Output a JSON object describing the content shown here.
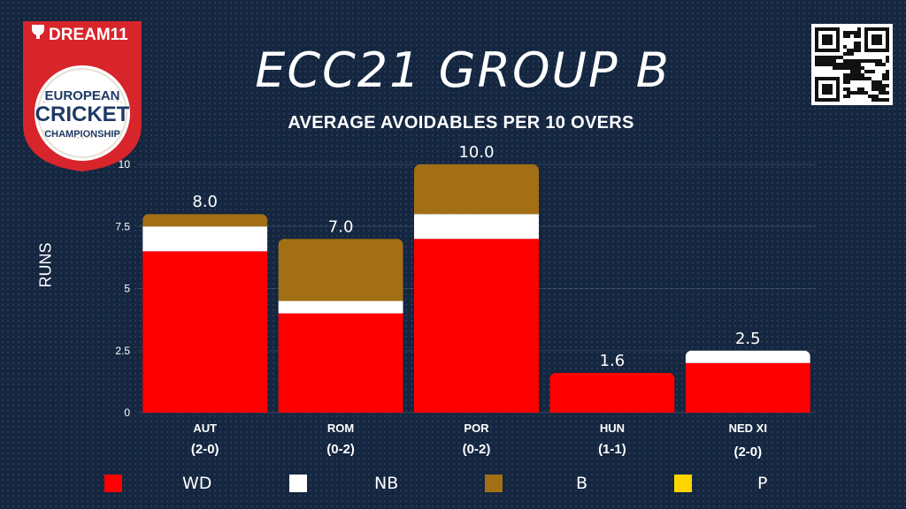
{
  "brand": {
    "sponsor": "DREAM11",
    "logo_line1": "EUROPEAN",
    "logo_line2": "CRICKET",
    "logo_line3": "CHAMPIONSHIP"
  },
  "colors": {
    "background": "#142640",
    "wd": "#ff0000",
    "nb": "#ffffff",
    "b": "#a36f14",
    "p": "#ffd500",
    "logo_red": "#d8252c"
  },
  "chart_data": {
    "type": "bar",
    "stacked": true,
    "title": "ECC21 GROUP B",
    "subtitle": "AVERAGE AVOIDABLES PER 10 OVERS",
    "ylabel": "RUNS",
    "xlabel": "",
    "ylim": [
      0,
      10
    ],
    "yticks": [
      "0",
      "2.5",
      "5",
      "7.5",
      "10"
    ],
    "yticks_values": [
      0,
      2.5,
      5,
      7.5,
      10
    ],
    "grid": true,
    "legend_position": "bottom",
    "categories": [
      "AUT",
      "ROM",
      "POR",
      "HUN",
      "NED XI"
    ],
    "records": [
      "(2-0)",
      "(0-2)",
      "(0-2)",
      "(1-1)",
      "(2-0)"
    ],
    "series": [
      {
        "name": "WD",
        "values": [
          6.5,
          4.0,
          7.0,
          1.6,
          2.0
        ]
      },
      {
        "name": "NB",
        "values": [
          1.0,
          0.5,
          1.0,
          0.0,
          0.5
        ]
      },
      {
        "name": "B",
        "values": [
          0.5,
          2.5,
          2.0,
          0.0,
          0.0
        ]
      },
      {
        "name": "P",
        "values": [
          0.0,
          0.0,
          0.0,
          0.0,
          0.0
        ]
      }
    ],
    "totals": [
      "8.0",
      "7.0",
      "10.0",
      "1.6",
      "2.5"
    ]
  }
}
